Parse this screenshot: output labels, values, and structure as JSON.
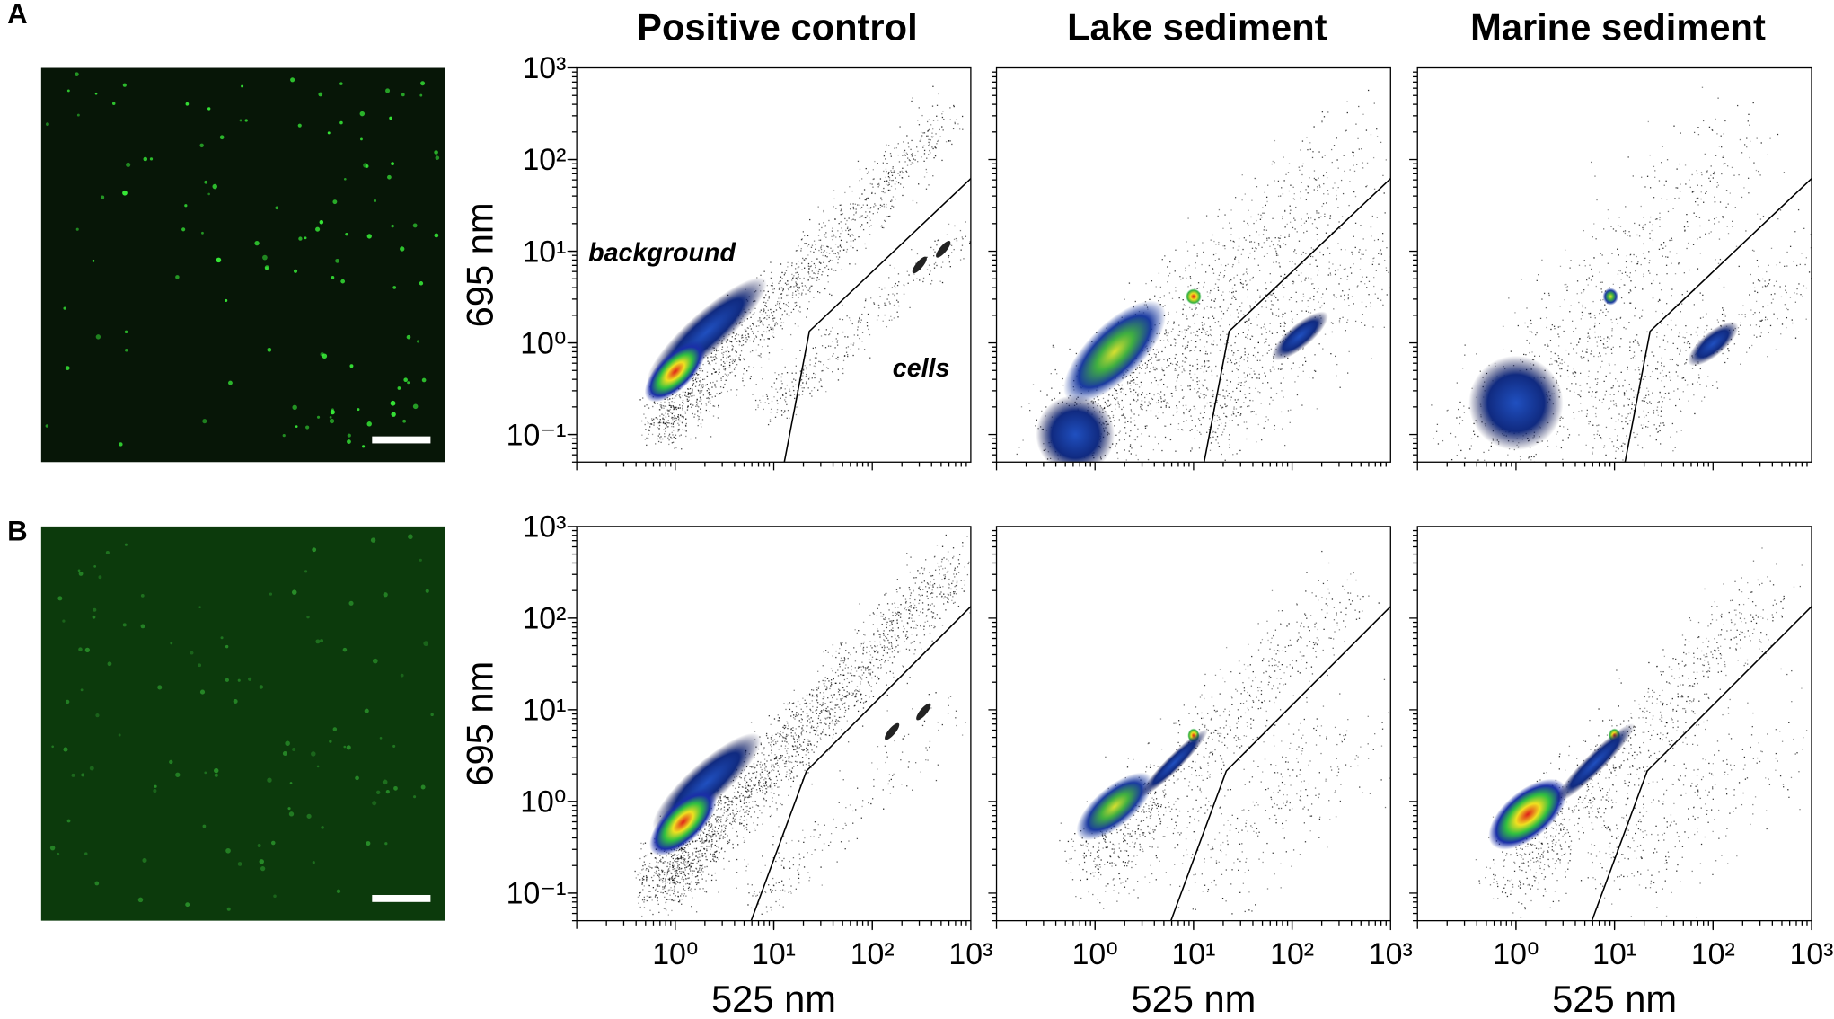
{
  "panels": [
    {
      "label": "A"
    },
    {
      "label": "B"
    }
  ],
  "chart_data": [
    {
      "type": "density",
      "title": "Positive control",
      "ylabel": "695 nm",
      "xscale": "log",
      "yscale": "log",
      "xlim": [
        0.1,
        1000
      ],
      "ylim": [
        0.05,
        1000
      ],
      "yticks": [
        {
          "value": 0.1,
          "label": "10⁻¹"
        },
        {
          "value": 1,
          "label": "10⁰"
        },
        {
          "value": 10,
          "label": "10¹"
        },
        {
          "value": 100,
          "label": "10²"
        },
        {
          "value": 1000,
          "label": "10³"
        }
      ],
      "gate": {
        "x": [
          12.8,
          23,
          1000
        ],
        "y": [
          0.05,
          1.34,
          62
        ]
      },
      "annotations": [
        {
          "text": "background"
        },
        {
          "text": "cells"
        }
      ]
    },
    {
      "type": "density",
      "title": "Lake sediment",
      "xscale": "log",
      "yscale": "log",
      "xlim": [
        0.1,
        1000
      ],
      "ylim": [
        0.05,
        1000
      ],
      "gate": {
        "x": [
          12.8,
          23,
          1000
        ],
        "y": [
          0.05,
          1.34,
          62
        ]
      }
    },
    {
      "type": "density",
      "title": "Marine sediment",
      "xscale": "log",
      "yscale": "log",
      "xlim": [
        0.1,
        1000
      ],
      "ylim": [
        0.05,
        1000
      ],
      "gate": {
        "x": [
          12.8,
          23,
          1000
        ],
        "y": [
          0.05,
          1.34,
          62
        ]
      }
    },
    {
      "type": "density",
      "xlabel": "525 nm",
      "ylabel": "695 nm",
      "xscale": "log",
      "yscale": "log",
      "xlim": [
        0.1,
        1000
      ],
      "ylim": [
        0.05,
        1000
      ],
      "xticks": [
        {
          "value": 1,
          "label": "10⁰"
        },
        {
          "value": 10,
          "label": "10¹"
        },
        {
          "value": 100,
          "label": "10²"
        },
        {
          "value": 1000,
          "label": "10³"
        }
      ],
      "yticks": [
        {
          "value": 0.1,
          "label": "10⁻¹"
        },
        {
          "value": 1,
          "label": "10⁰"
        },
        {
          "value": 10,
          "label": "10¹"
        },
        {
          "value": 100,
          "label": "10²"
        },
        {
          "value": 1000,
          "label": "10³"
        }
      ],
      "gate": {
        "x": [
          5.9,
          21.5,
          1000
        ],
        "y": [
          0.05,
          2.15,
          134
        ]
      }
    },
    {
      "type": "density",
      "xlabel": "525 nm",
      "xscale": "log",
      "yscale": "log",
      "xlim": [
        0.1,
        1000
      ],
      "ylim": [
        0.05,
        1000
      ],
      "xticks": [
        {
          "value": 1,
          "label": "10⁰"
        },
        {
          "value": 10,
          "label": "10¹"
        },
        {
          "value": 100,
          "label": "10²"
        },
        {
          "value": 1000,
          "label": "10³"
        }
      ],
      "gate": {
        "x": [
          5.9,
          21.5,
          1000
        ],
        "y": [
          0.05,
          2.15,
          134
        ]
      }
    },
    {
      "type": "density",
      "xlabel": "525 nm",
      "xscale": "log",
      "yscale": "log",
      "xlim": [
        0.1,
        1000
      ],
      "ylim": [
        0.05,
        1000
      ],
      "xticks": [
        {
          "value": 1,
          "label": "10⁰"
        },
        {
          "value": 10,
          "label": "10¹"
        },
        {
          "value": 100,
          "label": "10²"
        },
        {
          "value": 1000,
          "label": "10³"
        }
      ],
      "gate": {
        "x": [
          5.9,
          21.5,
          1000
        ],
        "y": [
          0.05,
          2.15,
          134
        ]
      }
    }
  ]
}
